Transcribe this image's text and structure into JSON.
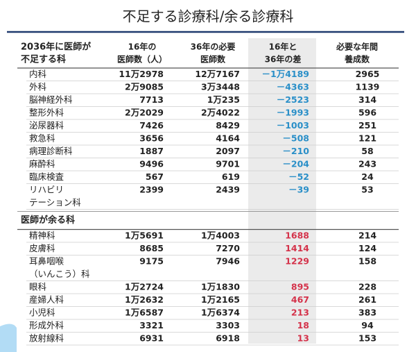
{
  "title": "不足する診療科/余る診療科",
  "table": {
    "columns": [
      [
        "16年の",
        "医師数（人）"
      ],
      [
        "36年の必要",
        "医師数"
      ],
      [
        "16年と",
        "36年の差"
      ],
      [
        "必要な年間",
        "養成数"
      ]
    ],
    "sections": [
      {
        "title": [
          "2036年に医師が",
          "不足する科"
        ],
        "rows": [
          {
            "name": [
              "内科"
            ],
            "cells": [
              "11万2978",
              "12万7167",
              "－1万4189",
              "2965"
            ]
          },
          {
            "name": [
              "外科"
            ],
            "cells": [
              "2万9085",
              "3万3448",
              "－4363",
              "1139"
            ]
          },
          {
            "name": [
              "脳神経外科"
            ],
            "cells": [
              "7713",
              "1万235",
              "－2523",
              "314"
            ]
          },
          {
            "name": [
              "整形外科"
            ],
            "cells": [
              "2万2029",
              "2万4022",
              "－1993",
              "596"
            ]
          },
          {
            "name": [
              "泌尿器科"
            ],
            "cells": [
              "7426",
              "8429",
              "－1003",
              "251"
            ]
          },
          {
            "name": [
              "救急科"
            ],
            "cells": [
              "3656",
              "4164",
              "－508",
              "121"
            ]
          },
          {
            "name": [
              "病理診断科"
            ],
            "cells": [
              "1887",
              "2097",
              "－210",
              "58"
            ]
          },
          {
            "name": [
              "麻酔科"
            ],
            "cells": [
              "9496",
              "9701",
              "－204",
              "243"
            ]
          },
          {
            "name": [
              "臨床検査"
            ],
            "cells": [
              "567",
              "619",
              "－52",
              "24"
            ]
          },
          {
            "name": [
              "リハビリ",
              "テーション科"
            ],
            "cells": [
              "2399",
              "2439",
              "－39",
              "53"
            ]
          }
        ]
      },
      {
        "title": [
          "医師が余る科"
        ],
        "rows": [
          {
            "name": [
              "精神科"
            ],
            "cells": [
              "1万5691",
              "1万4003",
              "1688",
              "214"
            ]
          },
          {
            "name": [
              "皮膚科"
            ],
            "cells": [
              "8685",
              "7270",
              "1414",
              "124"
            ]
          },
          {
            "name": [
              "耳鼻咽喉",
              "（いんこう）科"
            ],
            "cells": [
              "9175",
              "7946",
              "1229",
              "158"
            ]
          },
          {
            "name": [
              "眼科"
            ],
            "cells": [
              "1万2724",
              "1万1830",
              "895",
              "228"
            ]
          },
          {
            "name": [
              "産婦人科"
            ],
            "cells": [
              "1万2632",
              "1万2165",
              "467",
              "261"
            ]
          },
          {
            "name": [
              "小児科"
            ],
            "cells": [
              "1万6587",
              "1万6374",
              "213",
              "383"
            ]
          },
          {
            "name": [
              "形成外科"
            ],
            "cells": [
              "3321",
              "3303",
              "18",
              "94"
            ]
          },
          {
            "name": [
              "放射線科"
            ],
            "cells": [
              "6931",
              "6918",
              "13",
              "153"
            ]
          }
        ]
      }
    ]
  }
}
